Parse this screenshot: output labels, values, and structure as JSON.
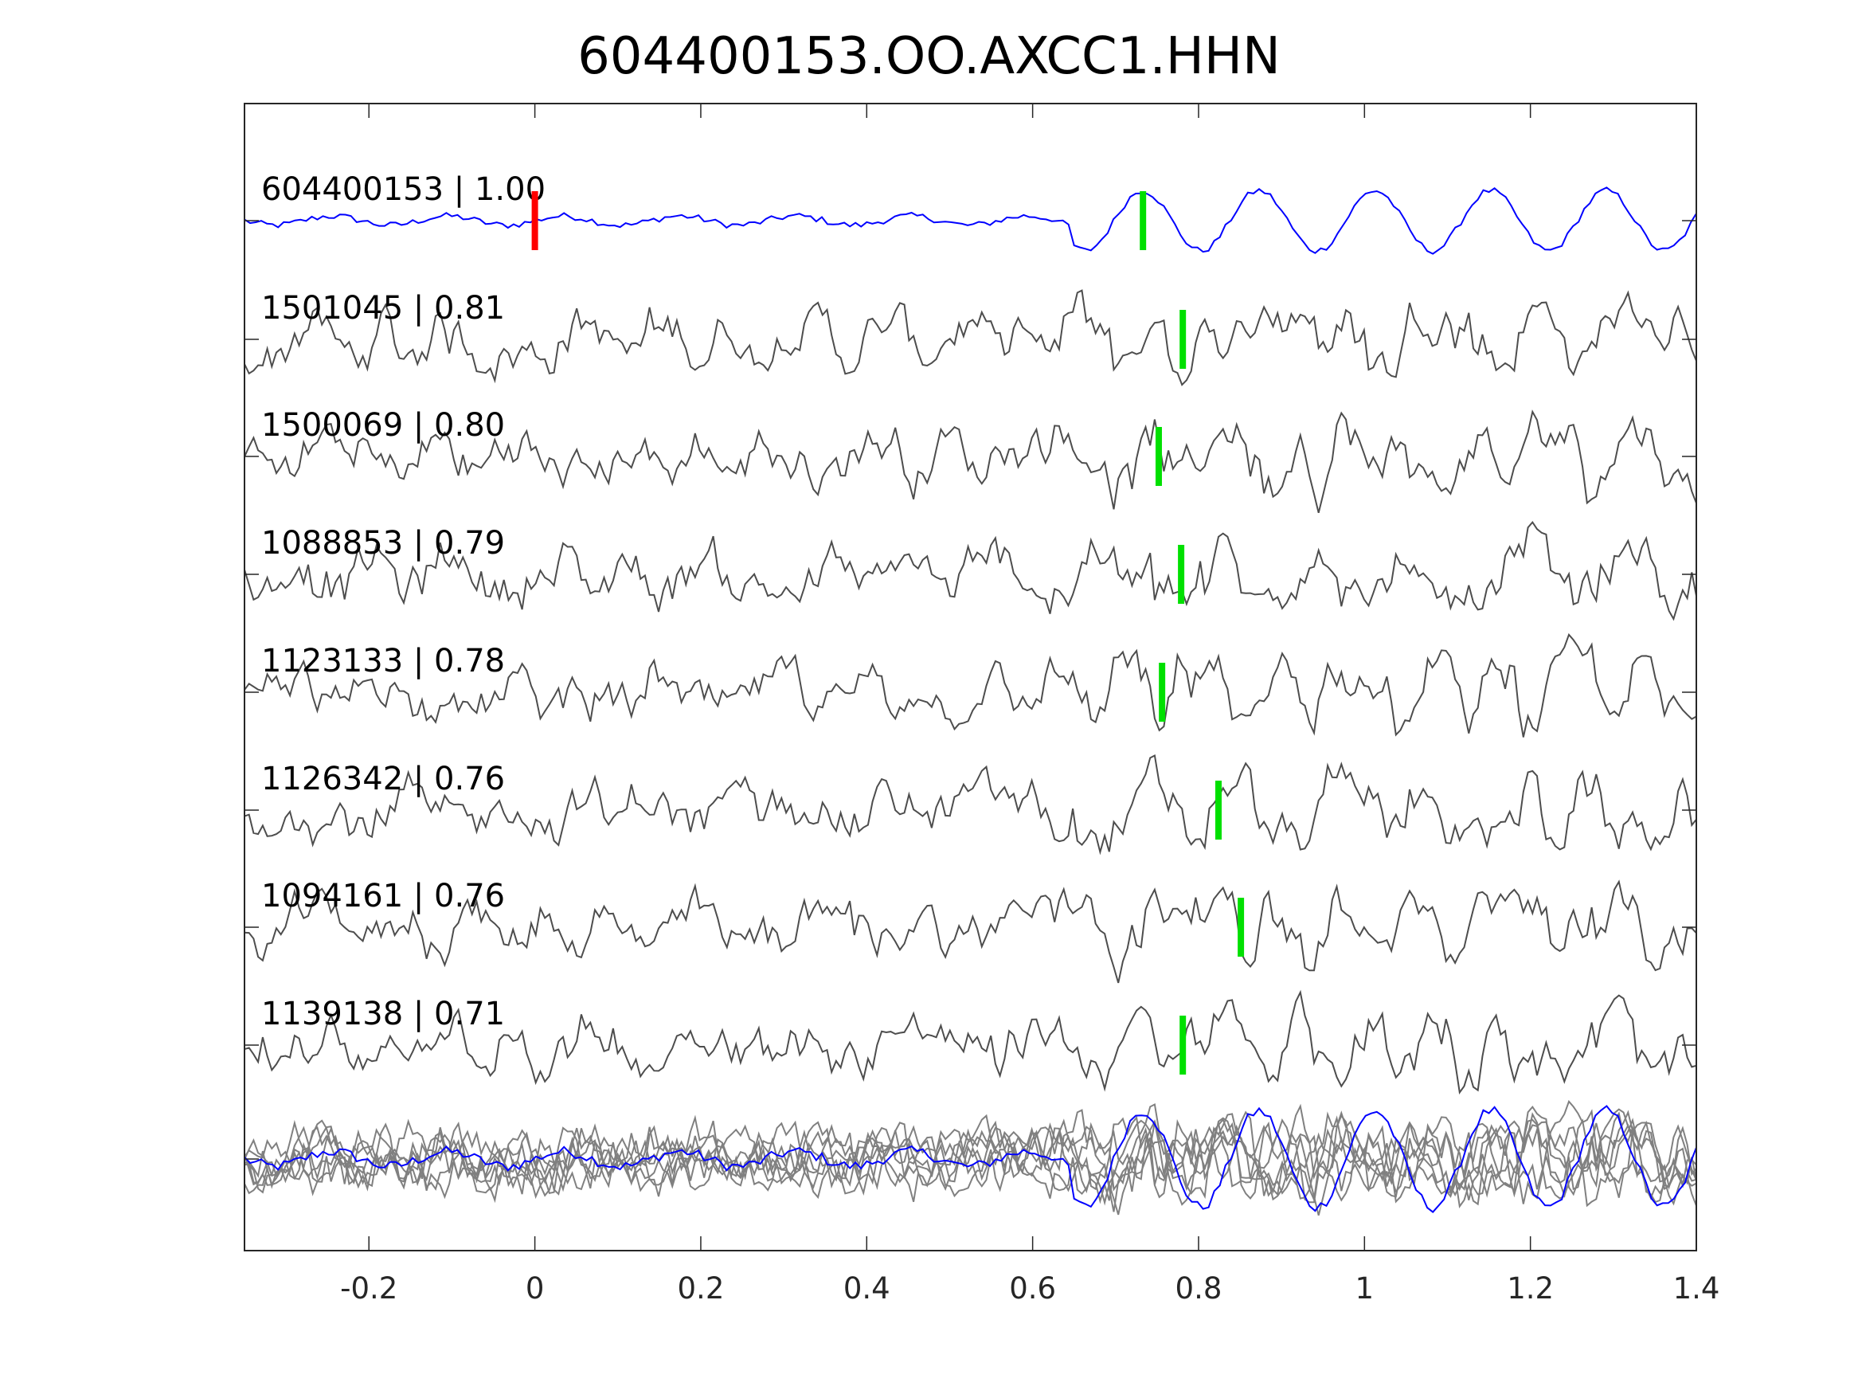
{
  "chart_data": {
    "type": "line",
    "title": "604400153.OO.AXCC1.HHN",
    "xlabel": "",
    "ylabel": "",
    "xlim": [
      -0.35,
      1.4
    ],
    "xticks": [
      "-0.2",
      "0",
      "0.2",
      "0.4",
      "0.6",
      "0.8",
      "1",
      "1.2",
      "1.4"
    ],
    "xtick_values": [
      -0.2,
      0,
      0.2,
      0.4,
      0.6,
      0.8,
      1,
      1.2,
      1.4
    ],
    "grid": false,
    "reference_color": "#0000ff",
    "trace_color": "#4d4d4d",
    "stack_color": "#808080",
    "reference_pick_color": "#ff0000",
    "pick_color": "#00e000",
    "series": [
      {
        "name": "604400153",
        "cc": "1.00",
        "label": "604400153 | 1.00",
        "pick": 0.733,
        "ref_pick": 0.0,
        "reference": true
      },
      {
        "name": "1501045",
        "cc": "0.81",
        "label": "1501045 | 0.81",
        "pick": 0.781
      },
      {
        "name": "1500069",
        "cc": "0.80",
        "label": "1500069 | 0.80",
        "pick": 0.752
      },
      {
        "name": "1088853",
        "cc": "0.79",
        "label": "1088853 | 0.79",
        "pick": 0.779
      },
      {
        "name": "1123133",
        "cc": "0.78",
        "label": "1123133 | 0.78",
        "pick": 0.756
      },
      {
        "name": "1126342",
        "cc": "0.76",
        "label": "1126342 | 0.76",
        "pick": 0.824
      },
      {
        "name": "1094161",
        "cc": "0.76",
        "label": "1094161 | 0.76",
        "pick": 0.851
      },
      {
        "name": "1139138",
        "cc": "0.71",
        "label": "1139138 | 0.71",
        "pick": 0.781
      }
    ]
  }
}
